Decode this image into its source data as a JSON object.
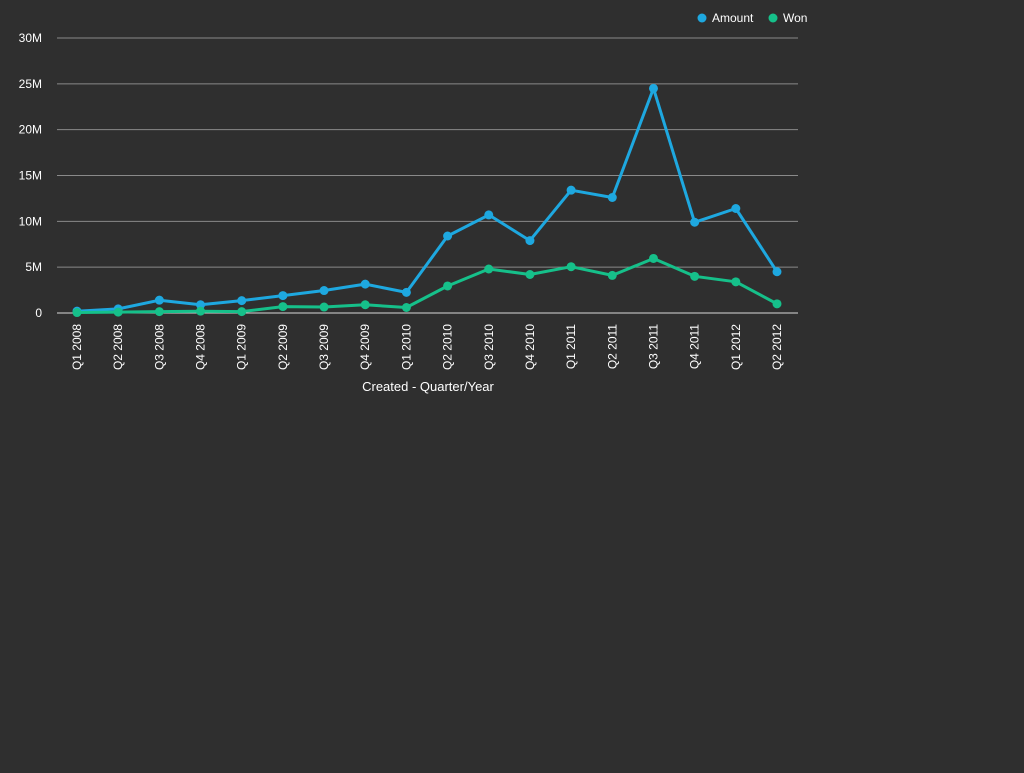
{
  "chart_data": {
    "type": "line",
    "categories": [
      "Q1 2008",
      "Q2 2008",
      "Q3 2008",
      "Q4 2008",
      "Q1 2009",
      "Q2 2009",
      "Q3 2009",
      "Q4 2009",
      "Q1 2010",
      "Q2 2010",
      "Q3 2010",
      "Q4 2010",
      "Q1 2011",
      "Q2 2011",
      "Q3 2011",
      "Q4 2011",
      "Q1 2012",
      "Q2 2012"
    ],
    "series": [
      {
        "name": "Amount",
        "color": "#1ea8e0",
        "values": [
          0.2,
          0.45,
          1.4,
          0.9,
          1.35,
          1.9,
          2.45,
          3.15,
          2.25,
          8.4,
          10.7,
          7.9,
          13.4,
          12.6,
          24.5,
          9.9,
          11.4,
          4.5
        ]
      },
      {
        "name": "Won",
        "color": "#16c08a",
        "values": [
          0.05,
          0.1,
          0.15,
          0.2,
          0.15,
          0.7,
          0.65,
          0.9,
          0.6,
          2.95,
          4.8,
          4.2,
          5.05,
          4.1,
          5.95,
          4.0,
          3.4,
          1.0
        ]
      }
    ],
    "y_ticks": [
      {
        "value": 0,
        "label": "0"
      },
      {
        "value": 5,
        "label": "5M"
      },
      {
        "value": 10,
        "label": "10M"
      },
      {
        "value": 15,
        "label": "15M"
      },
      {
        "value": 20,
        "label": "20M"
      },
      {
        "value": 25,
        "label": "25M"
      },
      {
        "value": 30,
        "label": "30M"
      }
    ],
    "ylim": [
      0,
      30
    ],
    "y_unit": "millions",
    "xlabel": "Created - Quarter/Year",
    "ylabel": "",
    "title": "",
    "grid": true,
    "legend": "top-right"
  }
}
